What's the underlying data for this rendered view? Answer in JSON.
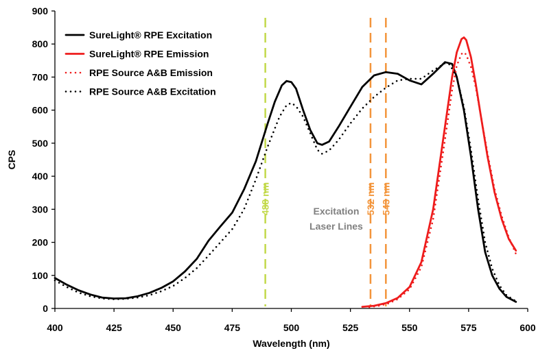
{
  "chart_data": {
    "type": "line",
    "title": "",
    "xlabel": "Wavelength (nm)",
    "ylabel": "CPS",
    "xlim": [
      400,
      600
    ],
    "ylim": [
      0,
      900
    ],
    "x_ticks": [
      400,
      425,
      450,
      475,
      500,
      525,
      550,
      575,
      600
    ],
    "y_ticks": [
      0,
      100,
      200,
      300,
      400,
      500,
      600,
      700,
      800,
      900
    ],
    "grid": false,
    "legend_position": "top-left",
    "series": [
      {
        "name": "SureLight® RPE Excitation",
        "color": "#000000",
        "style": "solid",
        "points": [
          [
            400,
            92
          ],
          [
            405,
            72
          ],
          [
            410,
            55
          ],
          [
            415,
            42
          ],
          [
            420,
            33
          ],
          [
            425,
            30
          ],
          [
            430,
            31
          ],
          [
            435,
            37
          ],
          [
            440,
            47
          ],
          [
            445,
            62
          ],
          [
            450,
            82
          ],
          [
            455,
            112
          ],
          [
            460,
            150
          ],
          [
            465,
            205
          ],
          [
            470,
            248
          ],
          [
            475,
            290
          ],
          [
            480,
            360
          ],
          [
            485,
            445
          ],
          [
            490,
            560
          ],
          [
            493,
            625
          ],
          [
            496,
            675
          ],
          [
            498,
            688
          ],
          [
            500,
            685
          ],
          [
            502,
            665
          ],
          [
            505,
            600
          ],
          [
            508,
            540
          ],
          [
            511,
            500
          ],
          [
            513,
            495
          ],
          [
            516,
            505
          ],
          [
            520,
            550
          ],
          [
            525,
            610
          ],
          [
            530,
            670
          ],
          [
            535,
            705
          ],
          [
            540,
            715
          ],
          [
            545,
            710
          ],
          [
            550,
            690
          ],
          [
            555,
            678
          ],
          [
            560,
            710
          ],
          [
            565,
            745
          ],
          [
            568,
            740
          ],
          [
            570,
            700
          ],
          [
            573,
            600
          ],
          [
            576,
            460
          ],
          [
            579,
            300
          ],
          [
            582,
            170
          ],
          [
            585,
            100
          ],
          [
            588,
            60
          ],
          [
            591,
            35
          ],
          [
            595,
            20
          ]
        ]
      },
      {
        "name": "SureLight® RPE Emission",
        "color": "#ee1c1c",
        "style": "solid",
        "points": [
          [
            530,
            5
          ],
          [
            535,
            8
          ],
          [
            540,
            16
          ],
          [
            545,
            32
          ],
          [
            550,
            65
          ],
          [
            555,
            140
          ],
          [
            560,
            300
          ],
          [
            565,
            550
          ],
          [
            568,
            700
          ],
          [
            570,
            775
          ],
          [
            572,
            815
          ],
          [
            573,
            820
          ],
          [
            574,
            812
          ],
          [
            576,
            760
          ],
          [
            578,
            680
          ],
          [
            580,
            590
          ],
          [
            583,
            460
          ],
          [
            586,
            350
          ],
          [
            589,
            270
          ],
          [
            592,
            210
          ],
          [
            595,
            175
          ]
        ]
      },
      {
        "name": "RPE Source A&B Emission",
        "color": "#ee1c1c",
        "style": "dotted",
        "points": [
          [
            533,
            4
          ],
          [
            537,
            8
          ],
          [
            541,
            15
          ],
          [
            545,
            28
          ],
          [
            550,
            58
          ],
          [
            555,
            125
          ],
          [
            560,
            270
          ],
          [
            565,
            510
          ],
          [
            568,
            660
          ],
          [
            570,
            735
          ],
          [
            572,
            770
          ],
          [
            573,
            775
          ],
          [
            574,
            768
          ],
          [
            576,
            730
          ],
          [
            578,
            670
          ],
          [
            580,
            590
          ],
          [
            583,
            470
          ],
          [
            586,
            360
          ],
          [
            589,
            280
          ],
          [
            592,
            215
          ],
          [
            595,
            165
          ]
        ]
      },
      {
        "name": "RPE Source A&B Excitation",
        "color": "#000000",
        "style": "dotted",
        "points": [
          [
            400,
            85
          ],
          [
            405,
            65
          ],
          [
            410,
            48
          ],
          [
            415,
            37
          ],
          [
            420,
            30
          ],
          [
            425,
            28
          ],
          [
            430,
            29
          ],
          [
            435,
            33
          ],
          [
            440,
            40
          ],
          [
            445,
            52
          ],
          [
            450,
            68
          ],
          [
            455,
            92
          ],
          [
            460,
            122
          ],
          [
            465,
            160
          ],
          [
            470,
            200
          ],
          [
            475,
            240
          ],
          [
            480,
            300
          ],
          [
            485,
            390
          ],
          [
            490,
            490
          ],
          [
            495,
            580
          ],
          [
            498,
            615
          ],
          [
            500,
            622
          ],
          [
            502,
            612
          ],
          [
            505,
            580
          ],
          [
            508,
            530
          ],
          [
            511,
            480
          ],
          [
            513,
            468
          ],
          [
            516,
            478
          ],
          [
            520,
            510
          ],
          [
            525,
            560
          ],
          [
            530,
            605
          ],
          [
            535,
            640
          ],
          [
            540,
            668
          ],
          [
            545,
            690
          ],
          [
            550,
            695
          ],
          [
            555,
            695
          ],
          [
            560,
            720
          ],
          [
            565,
            742
          ],
          [
            567,
            738
          ],
          [
            570,
            700
          ],
          [
            573,
            610
          ],
          [
            576,
            480
          ],
          [
            579,
            330
          ],
          [
            582,
            200
          ],
          [
            585,
            120
          ],
          [
            588,
            70
          ],
          [
            591,
            40
          ],
          [
            595,
            22
          ]
        ]
      }
    ],
    "vlines": [
      {
        "x": 489,
        "label": "488 nm",
        "color": "#c2d94a"
      },
      {
        "x": 533.5,
        "label": "532 nm",
        "color": "#f3953b"
      },
      {
        "x": 540,
        "label": "543 nm",
        "color": "#f3953b"
      }
    ],
    "annotation": {
      "lines": [
        "Excitation",
        "Laser Lines"
      ],
      "x": 519,
      "y": 330,
      "color": "#808080"
    }
  }
}
